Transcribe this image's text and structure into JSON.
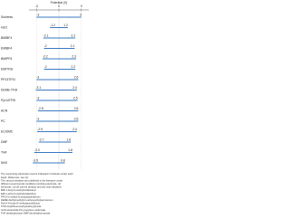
{
  "chart_data": {
    "type": "range",
    "title": "Potential (V)",
    "categories": [
      "Solvents",
      "H2O",
      "BMIBF4",
      "EMIBF4",
      "BMIPF6",
      "EMITFSI",
      "PP13TFSI",
      "DEME-TFSI",
      "Pyr14TFSI",
      "ACN",
      "PC",
      "EC/DMC",
      "DMF",
      "THF",
      "NH3"
    ],
    "low": [
      -3.0,
      -1.2,
      -2.1,
      -2.0,
      -2.2,
      -2.0,
      -3.0,
      -3.1,
      -3.0,
      -2.8,
      -3.0,
      -2.9,
      -2.7,
      -3.3,
      -3.5
    ],
    "high": [
      3.0,
      1.2,
      2.2,
      2.1,
      2.3,
      2.2,
      2.6,
      2.4,
      2.5,
      2.6,
      2.6,
      2.4,
      1.6,
      1.8,
      0.8
    ],
    "color": "#3a78c2",
    "xlim": [
      -4,
      4
    ],
    "xticks": [
      -3,
      0,
      3
    ],
    "notes": [
      "The supporting electrolyte used is indicated in brackets under each",
      "liquid. Reference: see [1].",
      "The various windows are published in the literature under",
      "different experimental conditions (working electrode, ref.",
      "electrode, cut-off current density) and are only indicative.",
      "BMI 1-butyl-3-methylimidazolium",
      "EMI 1-ethyl-3-methylimidazolium",
      "PP13 N-methyl-N-propylpiperidinium",
      "DEME diethylmethyl(2-methoxyethyl)ammonium",
      "Pyr14 N-butyl-N-methylpyrrolidinium",
      "TFSI bis(trifluoromethylsulfonyl)imide",
      "ACN acetonitrile  PC propylene carbonate",
      "THF tetrahydrofuran  DMF dimethylformamide"
    ]
  }
}
